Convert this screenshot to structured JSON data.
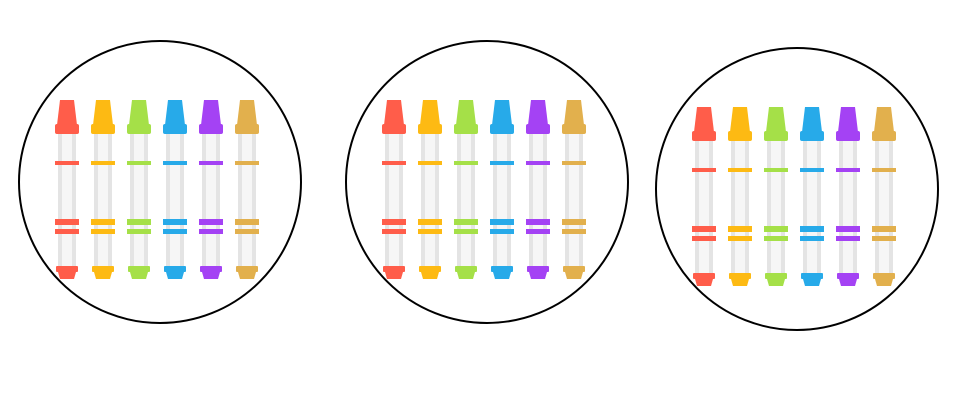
{
  "groups": [
    {
      "crayons": [
        {
          "color": "#FF5D4A"
        },
        {
          "color": "#FDBA13"
        },
        {
          "color": "#A5E048"
        },
        {
          "color": "#27AAE9"
        },
        {
          "color": "#A442F4"
        },
        {
          "color": "#E2B04D"
        }
      ]
    },
    {
      "crayons": [
        {
          "color": "#FF5D4A"
        },
        {
          "color": "#FDBA13"
        },
        {
          "color": "#A5E048"
        },
        {
          "color": "#27AAE9"
        },
        {
          "color": "#A442F4"
        },
        {
          "color": "#E2B04D"
        }
      ]
    },
    {
      "crayons": [
        {
          "color": "#FF5D4A"
        },
        {
          "color": "#FDBA13"
        },
        {
          "color": "#A5E048"
        },
        {
          "color": "#27AAE9"
        },
        {
          "color": "#A442F4"
        },
        {
          "color": "#E2B04D"
        }
      ]
    }
  ],
  "colors": {
    "outline": "#000000",
    "wrapper": "#F6F6F6",
    "wrapper_shade": "#E4E4E4",
    "background": "#FFFFFF"
  }
}
